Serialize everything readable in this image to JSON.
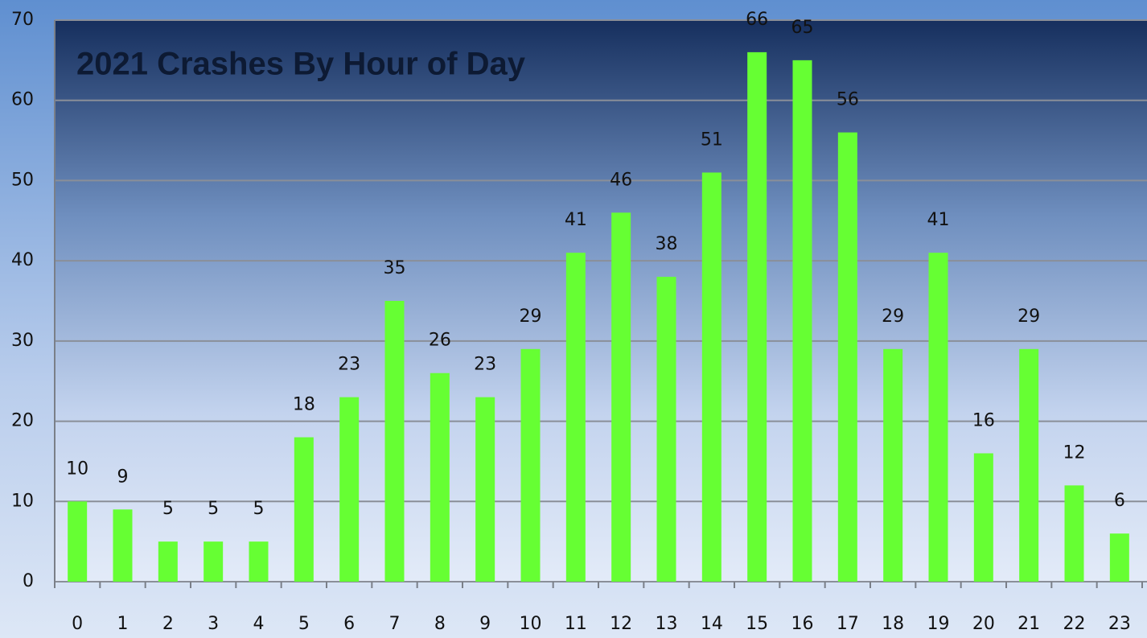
{
  "chart_data": {
    "type": "bar",
    "title": "2021 Crashes By Hour of Day",
    "categories": [
      "0",
      "1",
      "2",
      "3",
      "4",
      "5",
      "6",
      "7",
      "8",
      "9",
      "10",
      "11",
      "12",
      "13",
      "14",
      "15",
      "16",
      "17",
      "18",
      "19",
      "20",
      "21",
      "22",
      "23"
    ],
    "values": [
      10,
      9,
      5,
      5,
      5,
      18,
      23,
      35,
      26,
      23,
      29,
      41,
      46,
      38,
      51,
      66,
      65,
      56,
      29,
      41,
      16,
      29,
      12,
      6
    ],
    "color": "#66ff33",
    "ylim": [
      0,
      70
    ],
    "yticks": [
      0,
      10,
      20,
      30,
      40,
      50,
      60,
      70
    ],
    "grid": true
  }
}
